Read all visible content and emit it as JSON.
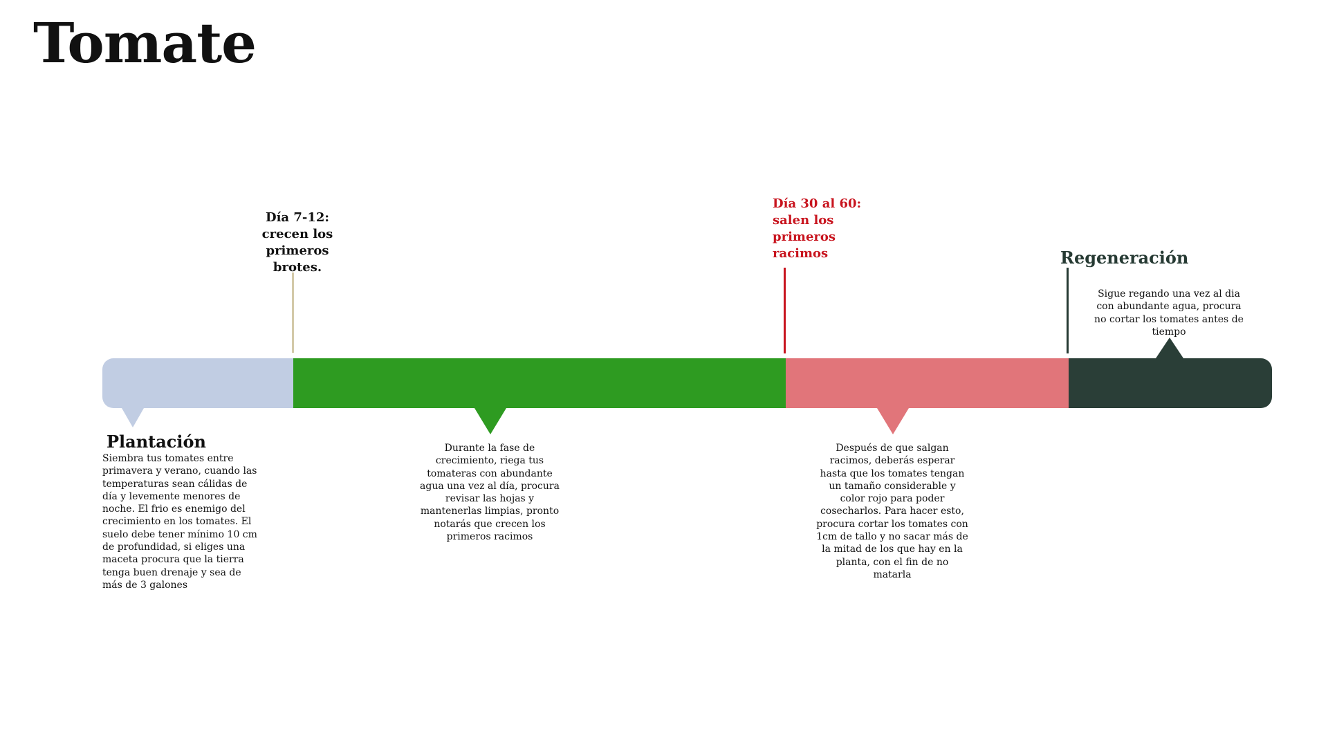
{
  "title": "Tomate",
  "colors": {
    "plantacion": "#c1cde3",
    "crecimiento": "#2e9b21",
    "cosecha": "#e1757a",
    "regeneracion": "#2a3e37",
    "accent_red": "#c8141e",
    "marker_tan": "#d3c9a8"
  },
  "stages": {
    "plantacion": {
      "heading": "Plantación",
      "description": "Siembra tus tomates entre primavera y verano, cuando las temperaturas sean cálidas de día y levemente menores de noche. El frio es enemigo del crecimiento en los tomates. El suelo debe tener mínimo 10 cm de profundidad, si eliges una maceta procura que la tierra tenga buen drenaje y sea de más de 3 galones"
    },
    "brotes": {
      "heading": "Día 7-12: crecen los primeros brotes."
    },
    "crecimiento": {
      "description": "Durante la fase de crecimiento, riega tus tomateras con abundante agua una vez al día, procura revisar las hojas y mantenerlas limpias, pronto notarás que crecen los primeros racimos"
    },
    "racimos": {
      "heading": "Día 30 al 60: salen los primeros racimos"
    },
    "cosecha": {
      "description": "Después de que salgan racimos, deberás esperar hasta que los tomates tengan un tamaño considerable y color rojo para poder cosecharlos. Para hacer esto, procura cortar los tomates con 1cm de tallo y no sacar más de la mitad de los que hay en la planta, con el fin de no matarla"
    },
    "regeneracion": {
      "heading": "Regeneración",
      "description": "Sigue regando una vez al dia con abundante agua, procura no cortar los tomates antes de tiempo"
    }
  }
}
